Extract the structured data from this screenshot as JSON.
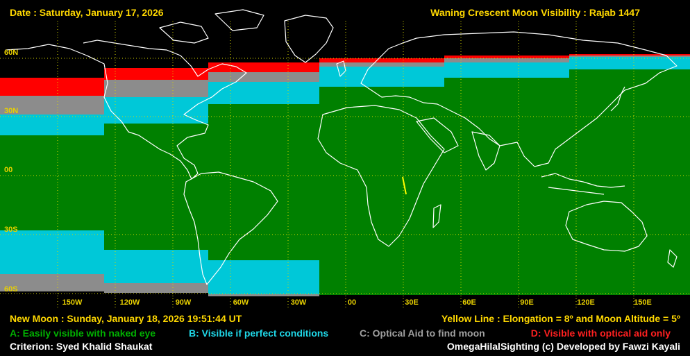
{
  "header": {
    "date": "Date : Saturday, January 17, 2026",
    "title": "Waning Crescent Moon Visibility : Rajab 1447"
  },
  "latitude_labels": [
    "60N",
    "30N",
    "00",
    "30S",
    "60S"
  ],
  "longitude_labels": [
    "150W",
    "120W",
    "90W",
    "60W",
    "30W",
    "00",
    "30E",
    "60E",
    "90E",
    "120E",
    "150E"
  ],
  "footer": {
    "new_moon": "New Moon : Sunday, January 18, 2026  19:51:44  UT",
    "yellow_line": "Yellow Line : Elongation = 8º  and Moon Altitude = 5º",
    "legend_a": "A: Easily visible with naked eye",
    "legend_b": "B: Visible if perfect conditions",
    "legend_c": "C: Optical Aid to find moon",
    "legend_d": "D: Visible with optical aid only",
    "criterion": "Criterion: Syed Khalid Shaukat",
    "credit": "OmegaHilalSighting  (c)  Developed by Fawzi Kayali"
  },
  "colors": {
    "zone_a": "#008000",
    "zone_b": "#00c8d8",
    "zone_c": "#8c8c8c",
    "zone_d": "#ff0000",
    "label_yellow": "#ffd800",
    "grid": "#d8d800",
    "coast": "#ffffff"
  }
}
